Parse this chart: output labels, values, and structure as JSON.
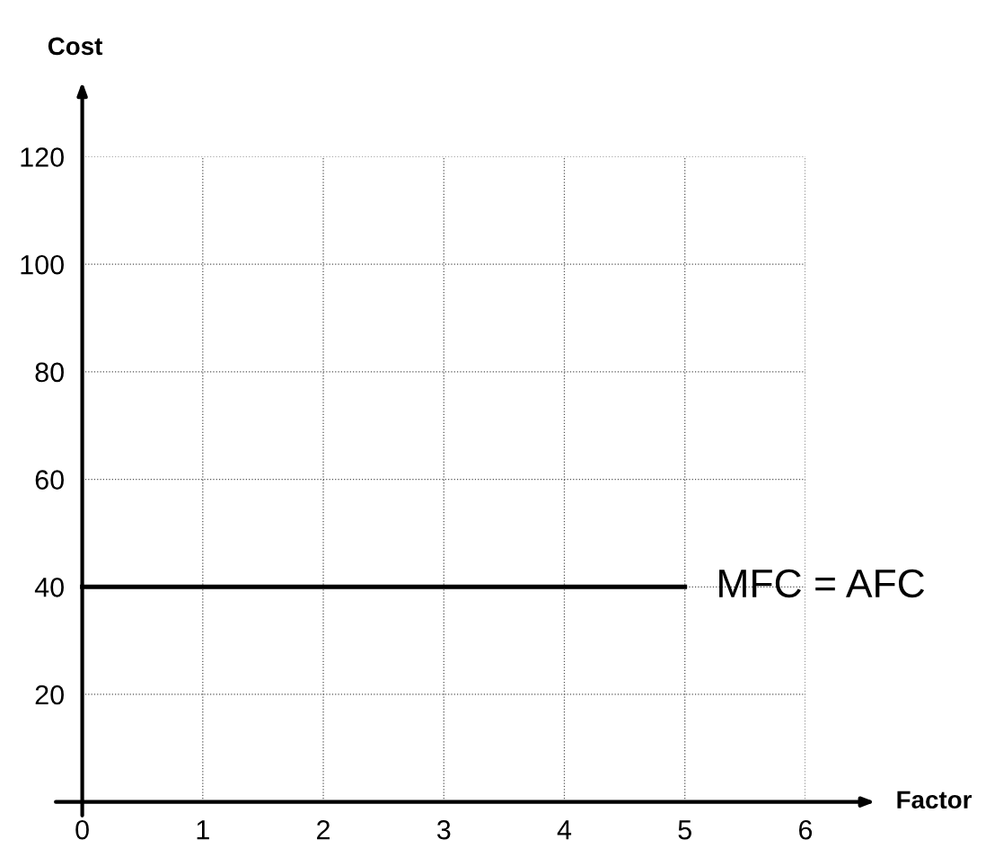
{
  "chart_data": {
    "type": "line",
    "xlabel": "Factor",
    "ylabel": "Cost",
    "xlim": [
      0,
      6
    ],
    "xticks": [
      0,
      1,
      2,
      3,
      4,
      5,
      6
    ],
    "ylim": [
      0,
      120
    ],
    "yticks": [
      20,
      40,
      60,
      80,
      100,
      120
    ],
    "grid": true,
    "series": [
      {
        "color": "#000000",
        "x": [
          0,
          5
        ],
        "values": [
          40,
          40
        ]
      }
    ],
    "annotations": [
      {
        "text": "MFC = AFC",
        "x": 5,
        "y": 40
      }
    ]
  }
}
